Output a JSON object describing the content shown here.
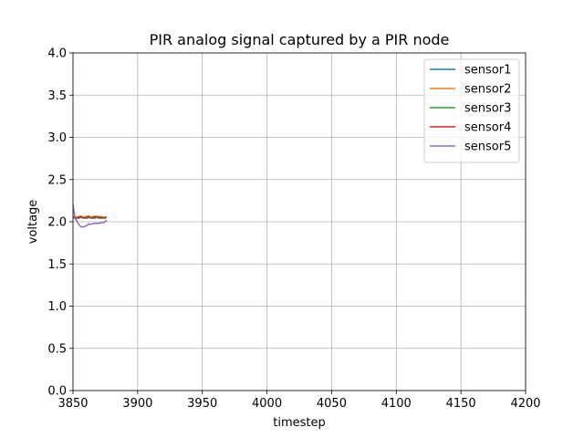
{
  "chart_data": {
    "type": "line",
    "title": "PIR analog signal captured by a PIR node",
    "xlabel": "timestep",
    "ylabel": "voltage",
    "xlim": [
      3850,
      4200
    ],
    "ylim": [
      0.0,
      4.0
    ],
    "xticks": [
      "3850",
      "3900",
      "3950",
      "4000",
      "4050",
      "4100",
      "4150",
      "4200"
    ],
    "yticks": [
      "0.0",
      "0.5",
      "1.0",
      "1.5",
      "2.0",
      "2.5",
      "3.0",
      "3.5",
      "4.0"
    ],
    "grid": true,
    "legend_position": "top-right",
    "series": [
      {
        "name": "sensor1",
        "color": "#1f77b4",
        "x": [
          3850,
          3852,
          3854,
          3856,
          3858,
          3860,
          3862,
          3864,
          3866,
          3868,
          3870,
          3872,
          3874,
          3876
        ],
        "y": [
          2.05,
          2.05,
          2.04,
          2.05,
          2.05,
          2.04,
          2.05,
          2.05,
          2.04,
          2.05,
          2.05,
          2.04,
          2.05,
          2.05
        ]
      },
      {
        "name": "sensor2",
        "color": "#ff7f0e",
        "x": [
          3850,
          3852,
          3854,
          3856,
          3858,
          3860,
          3862,
          3864,
          3866,
          3868,
          3870,
          3872,
          3874,
          3876
        ],
        "y": [
          2.06,
          2.05,
          2.06,
          2.07,
          2.05,
          2.06,
          2.07,
          2.05,
          2.06,
          2.07,
          2.05,
          2.06,
          2.05,
          2.06
        ]
      },
      {
        "name": "sensor3",
        "color": "#2ca02c",
        "x": [
          3850,
          3852,
          3854,
          3856,
          3858,
          3860,
          3862,
          3864,
          3866,
          3868,
          3870,
          3872,
          3874,
          3876
        ],
        "y": [
          2.05,
          2.04,
          2.05,
          2.06,
          2.04,
          2.05,
          2.06,
          2.04,
          2.05,
          2.06,
          2.04,
          2.05,
          2.04,
          2.05
        ]
      },
      {
        "name": "sensor4",
        "color": "#d62728",
        "x": [
          3850,
          3852,
          3854,
          3856,
          3858,
          3860,
          3862,
          3864,
          3866,
          3868,
          3870,
          3872,
          3874,
          3876
        ],
        "y": [
          2.06,
          2.05,
          2.05,
          2.06,
          2.05,
          2.05,
          2.06,
          2.05,
          2.06,
          2.05,
          2.06,
          2.05,
          2.05,
          2.05
        ]
      },
      {
        "name": "sensor5",
        "color": "#9467bd",
        "x": [
          3850,
          3851,
          3852,
          3854,
          3856,
          3858,
          3860,
          3862,
          3864,
          3866,
          3868,
          3870,
          3872,
          3874,
          3876
        ],
        "y": [
          2.2,
          2.1,
          2.03,
          1.98,
          1.94,
          1.94,
          1.95,
          1.97,
          1.97,
          1.98,
          1.98,
          1.98,
          1.99,
          1.99,
          2.02
        ]
      }
    ]
  }
}
